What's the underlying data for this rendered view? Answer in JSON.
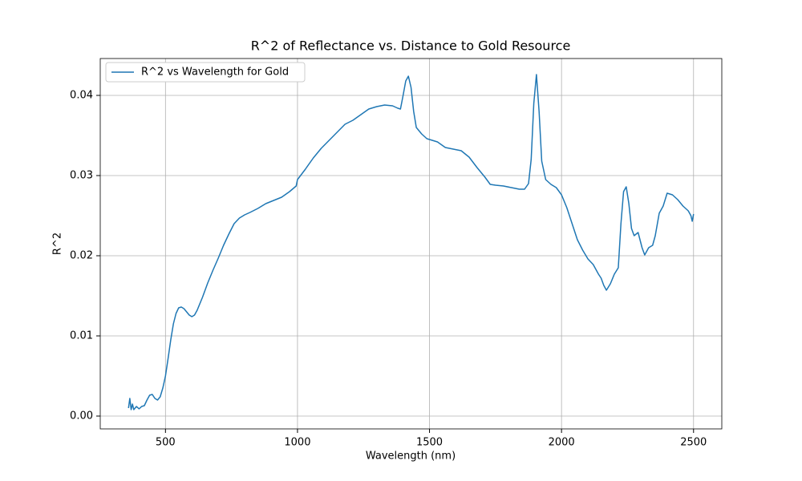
{
  "chart_data": {
    "type": "line",
    "title": "R^2 of Reflectance vs. Distance to Gold Resource",
    "x_label": "Wavelength (nm)",
    "y_label": "R^2",
    "x": [
      360,
      365,
      370,
      375,
      380,
      390,
      400,
      410,
      420,
      430,
      440,
      450,
      460,
      470,
      480,
      490,
      500,
      510,
      520,
      530,
      540,
      550,
      560,
      570,
      580,
      590,
      600,
      610,
      620,
      640,
      660,
      680,
      700,
      720,
      740,
      760,
      780,
      800,
      820,
      850,
      880,
      910,
      940,
      970,
      995,
      1000,
      1030,
      1060,
      1090,
      1120,
      1150,
      1180,
      1210,
      1240,
      1270,
      1300,
      1330,
      1360,
      1380,
      1390,
      1400,
      1410,
      1420,
      1430,
      1440,
      1450,
      1470,
      1490,
      1510,
      1530,
      1560,
      1590,
      1620,
      1650,
      1680,
      1710,
      1730,
      1750,
      1780,
      1810,
      1840,
      1860,
      1875,
      1885,
      1895,
      1905,
      1915,
      1925,
      1940,
      1960,
      1980,
      2000,
      2020,
      2040,
      2060,
      2080,
      2100,
      2120,
      2140,
      2150,
      2160,
      2170,
      2185,
      2200,
      2215,
      2225,
      2235,
      2245,
      2255,
      2265,
      2275,
      2290,
      2305,
      2315,
      2330,
      2345,
      2355,
      2370,
      2385,
      2400,
      2420,
      2440,
      2460,
      2480,
      2490,
      2495,
      2500
    ],
    "series": [
      {
        "name": "R^2 vs Wavelength for Gold",
        "color": "#1f77b4",
        "values": [
          0.001,
          0.0022,
          0.0008,
          0.0015,
          0.0008,
          0.0012,
          0.0009,
          0.0012,
          0.0013,
          0.002,
          0.0026,
          0.0027,
          0.0022,
          0.002,
          0.0024,
          0.0035,
          0.005,
          0.0072,
          0.0095,
          0.0115,
          0.0128,
          0.0135,
          0.0136,
          0.0134,
          0.013,
          0.0126,
          0.0124,
          0.0126,
          0.0132,
          0.0148,
          0.0166,
          0.0182,
          0.0197,
          0.0213,
          0.0227,
          0.024,
          0.0247,
          0.0251,
          0.0254,
          0.0259,
          0.0265,
          0.0269,
          0.0273,
          0.028,
          0.0287,
          0.0295,
          0.0308,
          0.0322,
          0.0334,
          0.0344,
          0.0354,
          0.0364,
          0.0369,
          0.0376,
          0.0383,
          0.0386,
          0.0388,
          0.0387,
          0.0384,
          0.0383,
          0.04,
          0.0418,
          0.0424,
          0.041,
          0.038,
          0.036,
          0.0352,
          0.0346,
          0.0344,
          0.0342,
          0.0335,
          0.0333,
          0.0331,
          0.0323,
          0.031,
          0.0298,
          0.0289,
          0.0288,
          0.0287,
          0.0285,
          0.0283,
          0.0283,
          0.029,
          0.032,
          0.039,
          0.0426,
          0.038,
          0.0318,
          0.0295,
          0.0289,
          0.0285,
          0.0276,
          0.026,
          0.024,
          0.022,
          0.0207,
          0.0196,
          0.0189,
          0.0177,
          0.0172,
          0.0163,
          0.0157,
          0.0165,
          0.0177,
          0.0185,
          0.024,
          0.028,
          0.0286,
          0.0265,
          0.0234,
          0.0225,
          0.0229,
          0.021,
          0.0201,
          0.021,
          0.0213,
          0.0225,
          0.0253,
          0.0262,
          0.0278,
          0.0276,
          0.027,
          0.0262,
          0.0256,
          0.025,
          0.0243,
          0.0252
        ]
      }
    ],
    "xlim": [
      253,
      2607
    ],
    "ylim": [
      -0.0016,
      0.0446
    ],
    "xticks": [
      500,
      1000,
      1500,
      2000,
      2500
    ],
    "yticks": [
      {
        "value": 0,
        "label": "0.00"
      },
      0.01,
      0.02,
      0.03,
      0.04
    ],
    "grid": true,
    "legend": "upper left"
  }
}
